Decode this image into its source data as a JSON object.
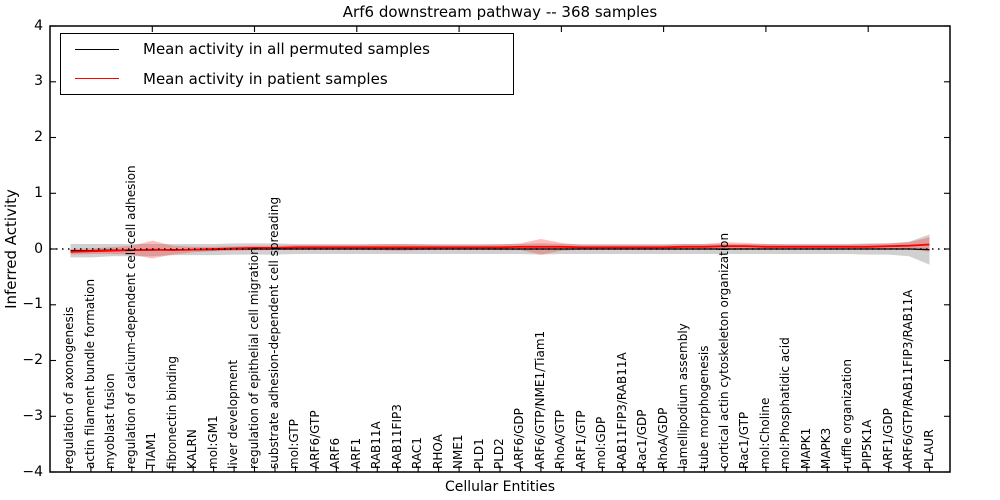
{
  "title": "Arf6 downstream pathway -- 368 samples",
  "axes": {
    "ylabel": "Inferred Activity",
    "xlabel": "Cellular Entities",
    "y_ticks": [
      "4",
      "3",
      "2",
      "1",
      "0",
      "−1",
      "−2",
      "−3",
      "−4"
    ]
  },
  "legend": {
    "items": [
      {
        "label": "Mean activity in all permuted samples",
        "color": "#000000"
      },
      {
        "label": "Mean activity in patient samples",
        "color": "#ff0000"
      }
    ]
  },
  "colors": {
    "permuted_line": "#000000",
    "patient_line": "#ff0000",
    "permuted_band": "rgba(120,120,120,0.35)",
    "patient_band": "rgba(255,40,40,0.30)",
    "frame": "#000000"
  },
  "chart_data": {
    "type": "line",
    "title": "Arf6 downstream pathway -- 368 samples",
    "xlabel": "Cellular Entities",
    "ylabel": "Inferred Activity",
    "ylim": [
      -4,
      4
    ],
    "y_tick_values": [
      4,
      3,
      2,
      1,
      0,
      -1,
      -2,
      -3,
      -4
    ],
    "grid": false,
    "legend_position": "upper left",
    "categories": [
      "regulation of axonogenesis",
      "actin filament bundle formation",
      "myoblast fusion",
      "regulation of calcium-dependent cell-cell adhesion",
      "TIAM1",
      "fibronectin binding",
      "KALRN",
      "mol:GM1",
      "liver development",
      "regulation of epithelial cell migration",
      "substrate adhesion-dependent cell spreading",
      "mol:GTP",
      "ARF6/GTP",
      "ARF6",
      "ARF1",
      "RAB11A",
      "RAB11FIP3",
      "RAC1",
      "RHOA",
      "NME1",
      "PLD1",
      "PLD2",
      "ARF6/GDP",
      "ARF6/GTP/NME1/Tiam1",
      "RhoA/GTP",
      "ARF1/GTP",
      "mol:GDP",
      "RAB11FIP3/RAB11A",
      "Rac1/GDP",
      "RhoA/GDP",
      "lamellipodium assembly",
      "tube morphogenesis",
      "cortical actin cytoskeleton organization",
      "Rac1/GTP",
      "mol:Choline",
      "mol:Phosphatidic acid",
      "MAPK1",
      "MAPK3",
      "ruffle organization",
      "PIP5K1A",
      "ARF1/GDP",
      "ARF6/GTP/RAB11FIP3/RAB11A",
      "PLAUR"
    ],
    "series": [
      {
        "name": "Mean activity in all permuted samples",
        "values": [
          -0.03,
          -0.03,
          -0.02,
          -0.02,
          -0.02,
          -0.01,
          -0.01,
          -0.01,
          0,
          0,
          0,
          0,
          0,
          0,
          0,
          0,
          0,
          0,
          0,
          0,
          0,
          0,
          0,
          0,
          0,
          0,
          0,
          0,
          0,
          0,
          0,
          0,
          0,
          0,
          0,
          0,
          0,
          0,
          0,
          0,
          0,
          0,
          -0.01
        ]
      },
      {
        "name": "Mean activity in patient samples",
        "values": [
          -0.05,
          -0.04,
          -0.03,
          -0.02,
          -0.01,
          -0.02,
          -0.01,
          0,
          0.01,
          0.02,
          0.02,
          0.03,
          0.03,
          0.03,
          0.03,
          0.03,
          0.03,
          0.03,
          0.03,
          0.03,
          0.03,
          0.03,
          0.04,
          0.04,
          0.04,
          0.03,
          0.03,
          0.03,
          0.03,
          0.03,
          0.04,
          0.04,
          0.05,
          0.05,
          0.04,
          0.04,
          0.04,
          0.04,
          0.04,
          0.04,
          0.05,
          0.06,
          0.08
        ]
      }
    ],
    "bands": {
      "permuted_half_width": [
        0.12,
        0.12,
        0.11,
        0.11,
        0.11,
        0.1,
        0.1,
        0.1,
        0.1,
        0.1,
        0.1,
        0.09,
        0.09,
        0.09,
        0.09,
        0.09,
        0.09,
        0.09,
        0.09,
        0.09,
        0.09,
        0.09,
        0.09,
        0.1,
        0.09,
        0.09,
        0.09,
        0.09,
        0.09,
        0.09,
        0.09,
        0.09,
        0.09,
        0.09,
        0.09,
        0.09,
        0.09,
        0.09,
        0.09,
        0.1,
        0.1,
        0.13,
        0.27
      ],
      "patient_half_width": [
        0.05,
        0.05,
        0.06,
        0.08,
        0.16,
        0.08,
        0.05,
        0.04,
        0.04,
        0.04,
        0.04,
        0.04,
        0.04,
        0.04,
        0.04,
        0.05,
        0.06,
        0.05,
        0.04,
        0.04,
        0.04,
        0.05,
        0.06,
        0.14,
        0.07,
        0.04,
        0.04,
        0.04,
        0.04,
        0.04,
        0.05,
        0.05,
        0.07,
        0.06,
        0.05,
        0.04,
        0.04,
        0.04,
        0.04,
        0.05,
        0.05,
        0.06,
        0.13
      ]
    }
  }
}
